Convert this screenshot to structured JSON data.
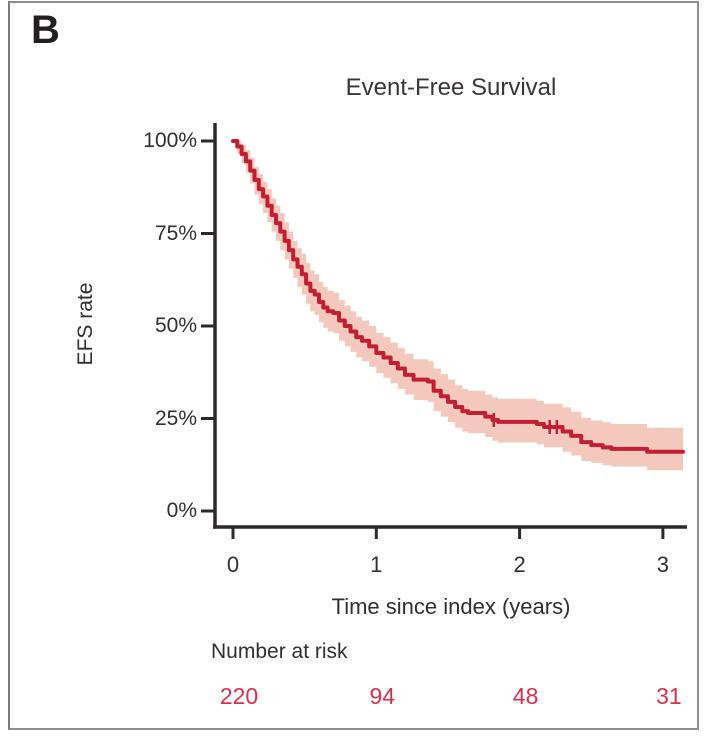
{
  "panel": {
    "label": "B"
  },
  "colors": {
    "curve": "#c01f34",
    "band": "#f2c9bc",
    "risk_number": "#d4334c",
    "axis": "#2d292a",
    "border": "#8f8f8f"
  },
  "chart_data": {
    "type": "line",
    "subtype": "kaplan-meier-step-curve-with-confidence-band",
    "title": "Event-Free Survival",
    "xlabel": "Time since index (years)",
    "ylabel": "EFS rate",
    "xlim": [
      0,
      3.17
    ],
    "ylim": [
      0,
      100
    ],
    "grid": false,
    "legend": "none",
    "x_ticks": [
      {
        "value": 0,
        "label": "0"
      },
      {
        "value": 1,
        "label": "1"
      },
      {
        "value": 2,
        "label": "2"
      },
      {
        "value": 3,
        "label": "3"
      }
    ],
    "y_ticks": [
      {
        "value": 0,
        "label": "0%"
      },
      {
        "value": 25,
        "label": "25%"
      },
      {
        "value": 50,
        "label": "50%"
      },
      {
        "value": 75,
        "label": "75%"
      },
      {
        "value": 100,
        "label": "100%"
      }
    ],
    "series": [
      {
        "name": "EFS",
        "color": "#c01f34",
        "band_color": "#f2c9bc",
        "point_columns": [
          "time_years",
          "survival_pct",
          "ci_lower_pct",
          "ci_upper_pct"
        ],
        "points": [
          [
            0.0,
            100,
            100,
            100
          ],
          [
            0.03,
            98.5,
            96.5,
            100
          ],
          [
            0.06,
            96.5,
            94,
            99
          ],
          [
            0.09,
            94.5,
            91.5,
            97.5
          ],
          [
            0.12,
            92,
            88.5,
            95.5
          ],
          [
            0.15,
            89.5,
            85.5,
            93
          ],
          [
            0.18,
            87,
            83,
            91
          ],
          [
            0.21,
            85,
            80.5,
            89
          ],
          [
            0.24,
            82.5,
            78,
            87
          ],
          [
            0.27,
            80,
            75.5,
            84.5
          ],
          [
            0.3,
            77.8,
            73,
            82.5
          ],
          [
            0.33,
            75.5,
            70.5,
            80.5
          ],
          [
            0.36,
            73,
            68,
            78
          ],
          [
            0.39,
            70.5,
            65.5,
            75.5
          ],
          [
            0.42,
            68,
            63,
            73
          ],
          [
            0.45,
            66,
            60.5,
            71
          ],
          [
            0.48,
            64,
            58.5,
            69.5
          ],
          [
            0.51,
            61.5,
            56,
            67
          ],
          [
            0.54,
            59.5,
            54,
            65
          ],
          [
            0.57,
            58.5,
            53,
            64
          ],
          [
            0.6,
            56.5,
            51,
            62
          ],
          [
            0.63,
            55,
            49.5,
            60.5
          ],
          [
            0.66,
            54,
            48.5,
            59.5
          ],
          [
            0.7,
            53.5,
            48,
            59
          ],
          [
            0.74,
            51.5,
            46,
            57
          ],
          [
            0.78,
            50,
            44.5,
            55.5
          ],
          [
            0.82,
            48.5,
            43,
            54
          ],
          [
            0.86,
            47,
            41.5,
            52.5
          ],
          [
            0.9,
            46,
            40.5,
            51.5
          ],
          [
            0.95,
            44.5,
            39,
            50
          ],
          [
            1.0,
            42.7,
            37.3,
            48.1
          ],
          [
            1.05,
            41.5,
            36,
            47
          ],
          [
            1.1,
            40,
            34.5,
            45.5
          ],
          [
            1.15,
            38.5,
            33,
            44
          ],
          [
            1.2,
            36.8,
            31.5,
            42.5
          ],
          [
            1.26,
            35.5,
            30,
            41
          ],
          [
            1.36,
            35,
            29.5,
            40.5
          ],
          [
            1.4,
            32.5,
            27,
            38.5
          ],
          [
            1.45,
            31,
            25.5,
            37
          ],
          [
            1.5,
            29.5,
            24,
            35.5
          ],
          [
            1.55,
            28.1,
            22.5,
            34
          ],
          [
            1.6,
            27,
            21.5,
            33
          ],
          [
            1.64,
            26.5,
            21,
            32.5
          ],
          [
            1.76,
            25.5,
            20,
            31.5
          ],
          [
            1.81,
            24.6,
            19,
            30.7
          ],
          [
            1.85,
            24.1,
            18.5,
            30.3
          ],
          [
            2.12,
            23.5,
            18,
            29.8
          ],
          [
            2.17,
            22.7,
            17.2,
            29
          ],
          [
            2.3,
            21.5,
            16,
            28
          ],
          [
            2.36,
            20.3,
            15,
            26.8
          ],
          [
            2.43,
            18.6,
            13.5,
            25.2
          ],
          [
            2.5,
            17.8,
            13,
            24.5
          ],
          [
            2.58,
            17.2,
            12.4,
            24
          ],
          [
            2.64,
            16.8,
            12,
            23.5
          ],
          [
            2.89,
            16,
            11,
            22.5
          ],
          [
            3.14,
            16,
            11,
            22.5
          ]
        ]
      }
    ],
    "censor_marks": [
      {
        "t": 1.82,
        "s": 24.6
      },
      {
        "t": 2.21,
        "s": 22.7
      },
      {
        "t": 2.26,
        "s": 22.7
      }
    ],
    "risk_table": {
      "label": "Number at risk",
      "times": [
        0,
        1,
        2,
        3
      ],
      "counts": [
        "220",
        "94",
        "48",
        "31"
      ]
    }
  }
}
